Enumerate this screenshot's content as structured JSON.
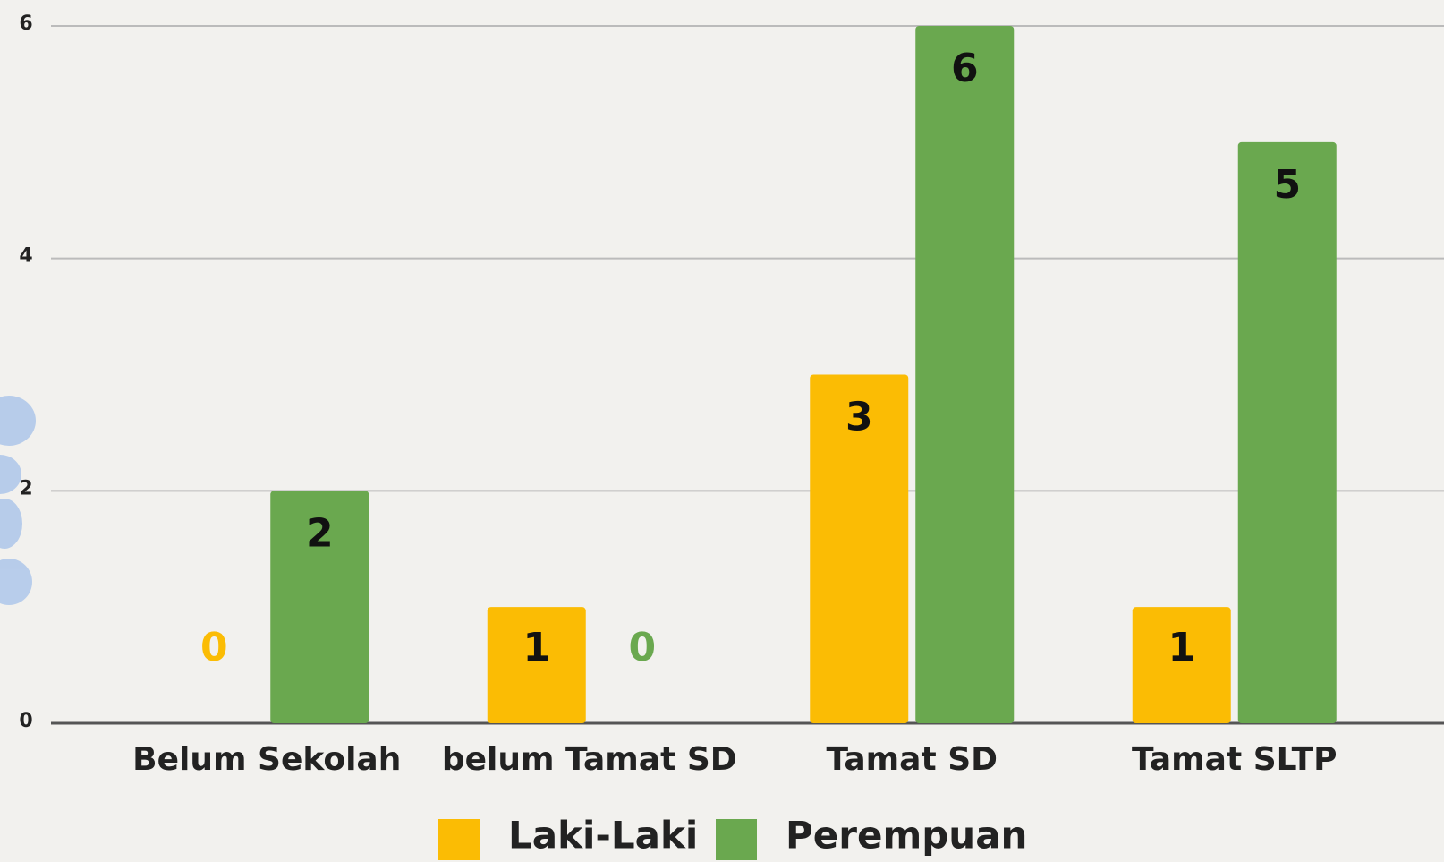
{
  "chart_data": {
    "type": "bar",
    "categories": [
      "Belum Sekolah",
      "belum Tamat SD",
      "Tamat SD",
      "Tamat SLTP"
    ],
    "series": [
      {
        "name": "Laki-Laki",
        "color": "#fbbc04",
        "values": [
          0,
          1,
          3,
          1
        ]
      },
      {
        "name": "Perempuan",
        "color": "#6aa84f",
        "values": [
          2,
          0,
          6,
          5
        ]
      }
    ],
    "ylim": [
      0,
      6
    ],
    "yticks": [
      0,
      2,
      4,
      6
    ],
    "grid": true,
    "legend": "bottom"
  }
}
